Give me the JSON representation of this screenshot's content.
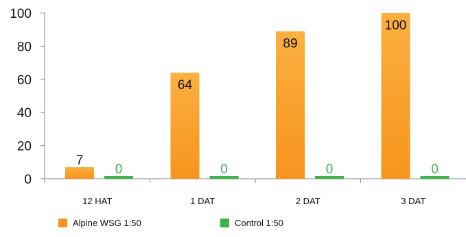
{
  "chart_data": {
    "type": "bar",
    "categories": [
      "12 HAT",
      "1 DAT",
      "2 DAT",
      "3 DAT"
    ],
    "series": [
      {
        "name": "Alpine WSG 1:50",
        "values": [
          7,
          64,
          89,
          100
        ],
        "color": "#f7941d",
        "label_color": "#111111"
      },
      {
        "name": "Control 1:50",
        "values": [
          0,
          0,
          0,
          0
        ],
        "color": "#3cb44b",
        "label_color": "#3cb44b"
      }
    ],
    "yticks": [
      0,
      20,
      40,
      60,
      80,
      100
    ],
    "ylim": [
      0,
      100
    ],
    "title": "",
    "xlabel": "",
    "ylabel": "",
    "grid": false,
    "legend_position": "bottom"
  }
}
